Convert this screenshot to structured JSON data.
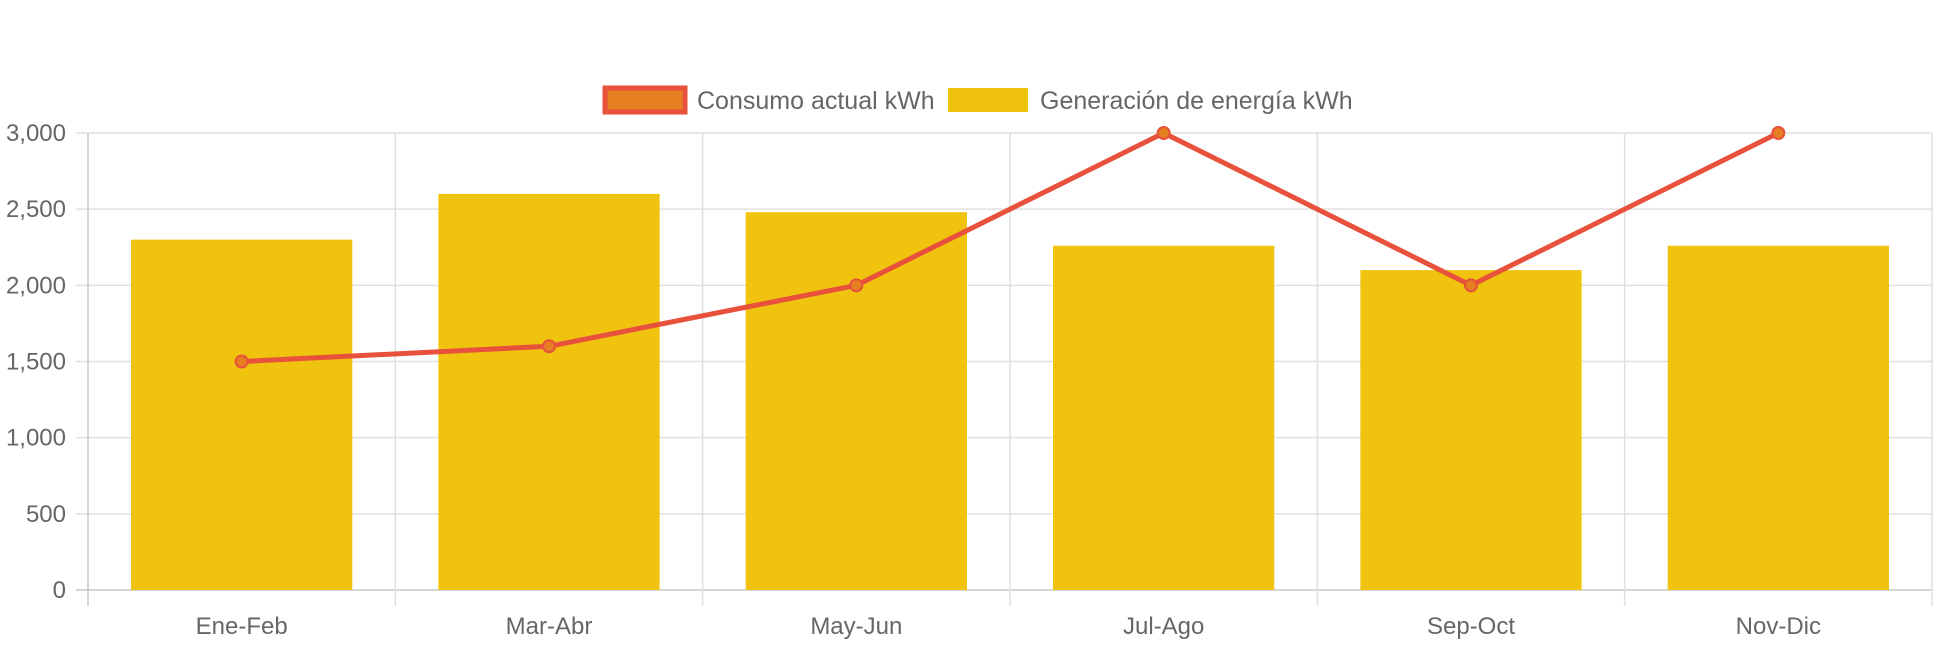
{
  "chart_data": {
    "type": "bar",
    "categories": [
      "Ene-Feb",
      "Mar-Abr",
      "May-Jun",
      "Jul-Ago",
      "Sep-Oct",
      "Nov-Dic"
    ],
    "series": [
      {
        "name": "Consumo actual kWh",
        "type": "line",
        "values": [
          1500,
          1600,
          2000,
          3000,
          2000,
          3000
        ],
        "color": "#e8513b",
        "point_color": "#e67e22"
      },
      {
        "name": "Generación de energía kWh",
        "type": "bar",
        "values": [
          2300,
          2600,
          2480,
          2260,
          2100,
          2260
        ],
        "color": "#f0c30f"
      }
    ],
    "ylim": [
      0,
      3000
    ],
    "yticks": [
      0,
      500,
      1000,
      1500,
      2000,
      2500,
      3000
    ],
    "ytick_labels": [
      "0",
      "500",
      "1,000",
      "1,500",
      "2,000",
      "2,500",
      "3,000"
    ],
    "grid": true,
    "legend_position": "top"
  },
  "colors": {
    "grid": "#e0e0e0",
    "axis": "#c8c8c8",
    "text": "#666666"
  }
}
